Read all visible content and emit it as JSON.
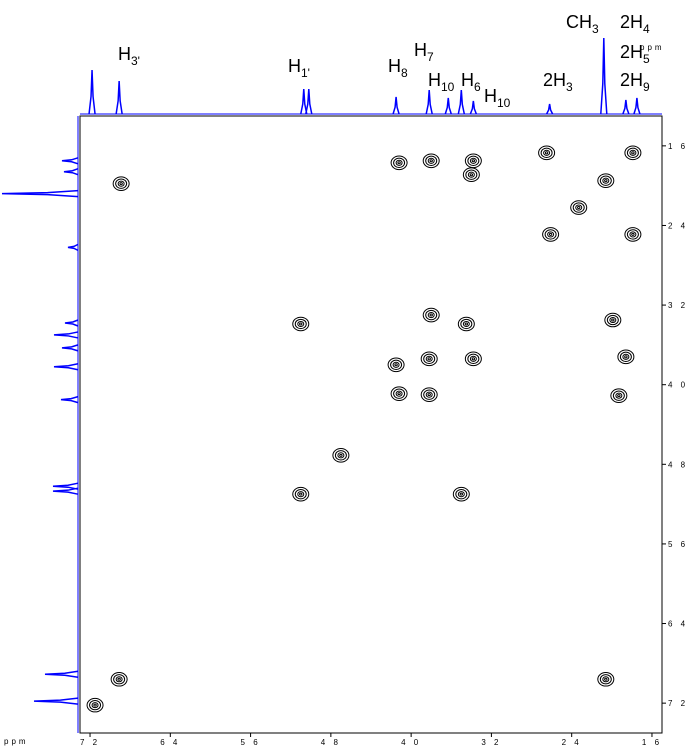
{
  "chart_data": {
    "type": "cosy",
    "x_label": "ppm",
    "y_label": "ppm",
    "xlim": [
      7.3,
      1.5
    ],
    "ylim": [
      1.3,
      7.5
    ],
    "xticks": [
      {
        "value": 7.2,
        "label": "7 2"
      },
      {
        "value": 6.4,
        "label": "6 4"
      },
      {
        "value": 5.6,
        "label": "5 6"
      },
      {
        "value": 4.8,
        "label": "4 8"
      },
      {
        "value": 4.0,
        "label": "4 0"
      },
      {
        "value": 3.2,
        "label": "3 2"
      },
      {
        "value": 2.4,
        "label": "2 4"
      },
      {
        "value": 1.6,
        "label": "1 6"
      }
    ],
    "yticks": [
      {
        "value": 1.6,
        "label": "1 6"
      },
      {
        "value": 2.4,
        "label": "2 4"
      },
      {
        "value": 3.2,
        "label": "3 2"
      },
      {
        "value": 4.0,
        "label": "4 0"
      },
      {
        "value": 4.8,
        "label": "4 8"
      },
      {
        "value": 5.6,
        "label": "5 6"
      },
      {
        "value": 6.4,
        "label": "6 4"
      },
      {
        "value": 7.2,
        "label": "7 2"
      }
    ],
    "peaks": {
      "x": [
        6.89,
        2.65,
        2.06,
        1.79,
        2.33,
        2.61,
        1.79,
        4.12,
        3.8,
        3.38,
        3.4,
        5.1,
        3.8,
        3.45,
        1.99,
        1.86,
        4.15,
        3.82,
        3.38,
        4.12,
        3.82,
        1.93,
        4.7,
        5.1,
        3.5,
        6.91,
        2.06,
        7.15
      ],
      "y": [
        1.98,
        1.67,
        1.95,
        1.67,
        2.22,
        2.49,
        2.49,
        1.77,
        1.75,
        1.75,
        1.89,
        3.39,
        3.3,
        3.39,
        3.35,
        3.72,
        3.8,
        3.74,
        3.74,
        4.09,
        4.1,
        4.11,
        4.71,
        5.1,
        5.1,
        6.96,
        6.96,
        7.22
      ]
    },
    "projection": {
      "ppm": [
        7.18,
        6.91,
        5.07,
        5.02,
        4.15,
        3.82,
        3.63,
        3.5,
        3.38,
        2.62,
        2.08,
        1.86,
        1.75
      ],
      "intensity": [
        44,
        33,
        25,
        25,
        17,
        24,
        16,
        24,
        13,
        10,
        76,
        14,
        16
      ]
    },
    "color": "#0000ff",
    "annotations": [
      {
        "text": "H",
        "sub": "3'"
      },
      {
        "text": "H",
        "sub": "1'"
      },
      {
        "text": "H",
        "sub": "8"
      },
      {
        "text": "H",
        "sub": "7"
      },
      {
        "text": "H",
        "sub": "10"
      },
      {
        "text": "H",
        "sub": "6"
      },
      {
        "text": "H",
        "sub": "10"
      },
      {
        "text": "2H",
        "sub": "3"
      },
      {
        "text": "CH",
        "sub": "3"
      },
      {
        "text": "2H",
        "sub": "4"
      },
      {
        "text": "2H",
        "sub": "5"
      },
      {
        "text": "2H",
        "sub": "9"
      }
    ]
  }
}
